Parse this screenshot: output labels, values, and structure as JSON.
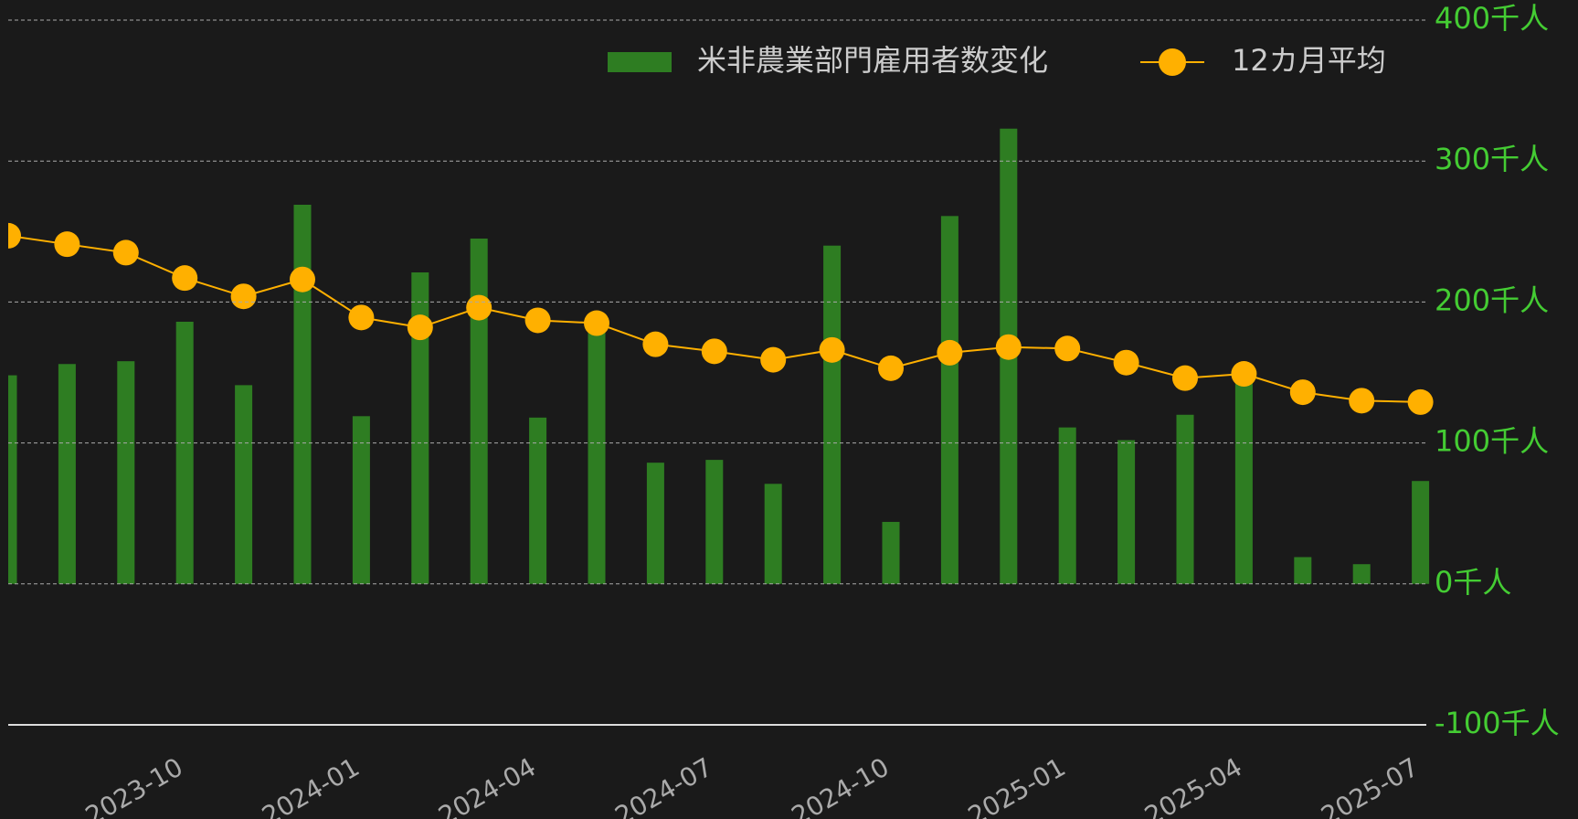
{
  "chart_data": {
    "type": "bar-line",
    "categories": [
      null,
      null,
      null,
      "2023-10",
      null,
      null,
      "2024-01",
      null,
      null,
      "2024-04",
      null,
      null,
      "2024-07",
      null,
      null,
      "2024-10",
      null,
      null,
      "2025-01",
      null,
      null,
      "2025-04",
      null,
      null,
      "2025-07"
    ],
    "series": [
      {
        "name": "米非農業部門雇用者数変化",
        "type": "bar",
        "color": "#2e7d22",
        "values": [
          148,
          156,
          158,
          186,
          141,
          269,
          119,
          221,
          245,
          118,
          184,
          86,
          88,
          71,
          240,
          44,
          261,
          323,
          111,
          102,
          120,
          147,
          19,
          14,
          73
        ]
      },
      {
        "name": "12カ月平均",
        "type": "line",
        "color": "#ffb000",
        "values": [
          247,
          241,
          235,
          217,
          204,
          216,
          189,
          182,
          196,
          187,
          185,
          170,
          165,
          159,
          166,
          153,
          164,
          168,
          167,
          157,
          146,
          149,
          136,
          130,
          129
        ]
      }
    ],
    "ylim": [
      -100,
      400
    ],
    "yticks": [
      {
        "value": -100,
        "label": "-100千人"
      },
      {
        "value": 0,
        "label": "0千人"
      },
      {
        "value": 100,
        "label": "100千人"
      },
      {
        "value": 200,
        "label": "200千人"
      },
      {
        "value": 300,
        "label": "300千人"
      },
      {
        "value": 400,
        "label": "400千人"
      }
    ],
    "grid": true,
    "legend": "top"
  }
}
